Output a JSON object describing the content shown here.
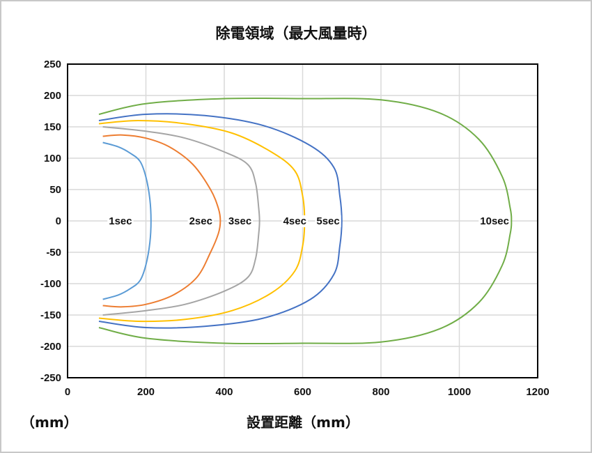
{
  "chart_data": {
    "type": "line",
    "title": "除電領域（最大風量時）",
    "xlabel": "設置距離（mm）",
    "ylabel": "（mm）",
    "xlim": [
      0,
      1200
    ],
    "ylim": [
      -250,
      250
    ],
    "xticks": [
      0,
      200,
      400,
      600,
      800,
      1000,
      1200
    ],
    "yticks": [
      250,
      200,
      150,
      100,
      50,
      0,
      -50,
      -100,
      -150,
      -200,
      -250
    ],
    "grid": true,
    "legend": "inline labels at y=0",
    "series": [
      {
        "name": "1sec",
        "color": "#5B9BD5",
        "points": [
          [
            90,
            125
          ],
          [
            130,
            118
          ],
          [
            160,
            108
          ],
          [
            185,
            95
          ],
          [
            200,
            70
          ],
          [
            210,
            35
          ],
          [
            213,
            0
          ],
          [
            210,
            -35
          ],
          [
            200,
            -70
          ],
          [
            185,
            -95
          ],
          [
            160,
            -108
          ],
          [
            130,
            -118
          ],
          [
            90,
            -125
          ]
        ]
      },
      {
        "name": "2sec",
        "color": "#ED7D31",
        "points": [
          [
            90,
            135
          ],
          [
            140,
            137
          ],
          [
            200,
            132
          ],
          [
            260,
            118
          ],
          [
            320,
            90
          ],
          [
            365,
            50
          ],
          [
            385,
            20
          ],
          [
            390,
            0
          ],
          [
            385,
            -20
          ],
          [
            365,
            -50
          ],
          [
            330,
            -90
          ],
          [
            270,
            -118
          ],
          [
            200,
            -133
          ],
          [
            140,
            -137
          ],
          [
            90,
            -135
          ]
        ]
      },
      {
        "name": "3sec",
        "color": "#A5A5A5",
        "points": [
          [
            90,
            150
          ],
          [
            200,
            143
          ],
          [
            300,
            132
          ],
          [
            400,
            110
          ],
          [
            460,
            90
          ],
          [
            480,
            60
          ],
          [
            488,
            20
          ],
          [
            490,
            0
          ],
          [
            488,
            -20
          ],
          [
            480,
            -60
          ],
          [
            460,
            -90
          ],
          [
            400,
            -112
          ],
          [
            300,
            -133
          ],
          [
            200,
            -143
          ],
          [
            90,
            -150
          ]
        ]
      },
      {
        "name": "4sec",
        "color": "#FFC000",
        "points": [
          [
            80,
            155
          ],
          [
            180,
            160
          ],
          [
            300,
            155
          ],
          [
            420,
            140
          ],
          [
            520,
            110
          ],
          [
            580,
            80
          ],
          [
            600,
            40
          ],
          [
            605,
            0
          ],
          [
            600,
            -40
          ],
          [
            580,
            -80
          ],
          [
            520,
            -115
          ],
          [
            420,
            -143
          ],
          [
            300,
            -157
          ],
          [
            180,
            -160
          ],
          [
            80,
            -155
          ]
        ]
      },
      {
        "name": "5sec",
        "color": "#4472C4",
        "points": [
          [
            80,
            160
          ],
          [
            200,
            170
          ],
          [
            350,
            168
          ],
          [
            500,
            152
          ],
          [
            620,
            120
          ],
          [
            680,
            85
          ],
          [
            695,
            40
          ],
          [
            700,
            0
          ],
          [
            695,
            -40
          ],
          [
            680,
            -85
          ],
          [
            620,
            -125
          ],
          [
            500,
            -155
          ],
          [
            350,
            -168
          ],
          [
            200,
            -170
          ],
          [
            80,
            -160
          ]
        ]
      },
      {
        "name": "10sec",
        "color": "#70AD47",
        "points": [
          [
            80,
            170
          ],
          [
            200,
            187
          ],
          [
            400,
            195
          ],
          [
            600,
            195
          ],
          [
            800,
            193
          ],
          [
            950,
            172
          ],
          [
            1050,
            130
          ],
          [
            1110,
            70
          ],
          [
            1130,
            20
          ],
          [
            1133,
            0
          ],
          [
            1130,
            -20
          ],
          [
            1110,
            -70
          ],
          [
            1050,
            -130
          ],
          [
            950,
            -172
          ],
          [
            800,
            -193
          ],
          [
            600,
            -195
          ],
          [
            400,
            -195
          ],
          [
            200,
            -187
          ],
          [
            80,
            -170
          ]
        ]
      }
    ],
    "labels": [
      {
        "text": "1sec",
        "x": 135,
        "y": 0
      },
      {
        "text": "2sec",
        "x": 340,
        "y": 0
      },
      {
        "text": "3sec",
        "x": 440,
        "y": 0
      },
      {
        "text": "4sec",
        "x": 580,
        "y": 0
      },
      {
        "text": "5sec",
        "x": 665,
        "y": 0
      },
      {
        "text": "10sec",
        "x": 1090,
        "y": 0
      }
    ]
  }
}
